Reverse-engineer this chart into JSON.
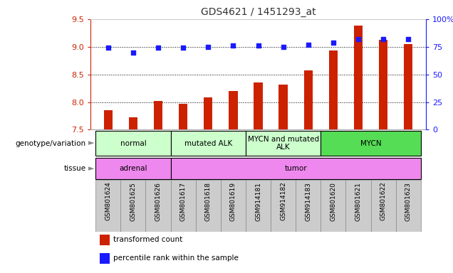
{
  "title": "GDS4621 / 1451293_at",
  "samples": [
    "GSM801624",
    "GSM801625",
    "GSM801626",
    "GSM801617",
    "GSM801618",
    "GSM801619",
    "GSM914181",
    "GSM914182",
    "GSM914183",
    "GSM801620",
    "GSM801621",
    "GSM801622",
    "GSM801623"
  ],
  "bar_values": [
    7.85,
    7.73,
    8.02,
    7.97,
    8.09,
    8.2,
    8.35,
    8.32,
    8.57,
    8.93,
    9.38,
    9.12,
    9.05
  ],
  "dot_values": [
    74,
    70,
    74,
    74,
    75,
    76,
    76,
    75,
    77,
    79,
    82,
    82,
    82
  ],
  "ylim_left": [
    7.5,
    9.5
  ],
  "ylim_right": [
    0,
    100
  ],
  "yticks_left": [
    7.5,
    8.0,
    8.5,
    9.0,
    9.5
  ],
  "yticks_right": [
    0,
    25,
    50,
    75,
    100
  ],
  "ytick_labels_right": [
    "0",
    "25",
    "50",
    "75",
    "100%"
  ],
  "bar_color": "#cc2200",
  "dot_color": "#1a1aff",
  "bg_color": "#ffffff",
  "genotype_groups": [
    {
      "label": "normal",
      "start": 0,
      "end": 3,
      "color": "#ccffcc"
    },
    {
      "label": "mutated ALK",
      "start": 3,
      "end": 6,
      "color": "#ccffcc"
    },
    {
      "label": "MYCN and mutated\nALK",
      "start": 6,
      "end": 9,
      "color": "#ccffcc"
    },
    {
      "label": "MYCN",
      "start": 9,
      "end": 13,
      "color": "#55dd55"
    }
  ],
  "tissue_groups": [
    {
      "label": "adrenal",
      "start": 0,
      "end": 3,
      "color": "#ee88ee"
    },
    {
      "label": "tumor",
      "start": 3,
      "end": 13,
      "color": "#ee88ee"
    }
  ],
  "legend_items": [
    {
      "color": "#cc2200",
      "label": "transformed count"
    },
    {
      "color": "#1a1aff",
      "label": "percentile rank within the sample"
    }
  ],
  "left_axis_color": "#cc2200",
  "right_axis_color": "#1a1aff",
  "title_color": "#333333"
}
